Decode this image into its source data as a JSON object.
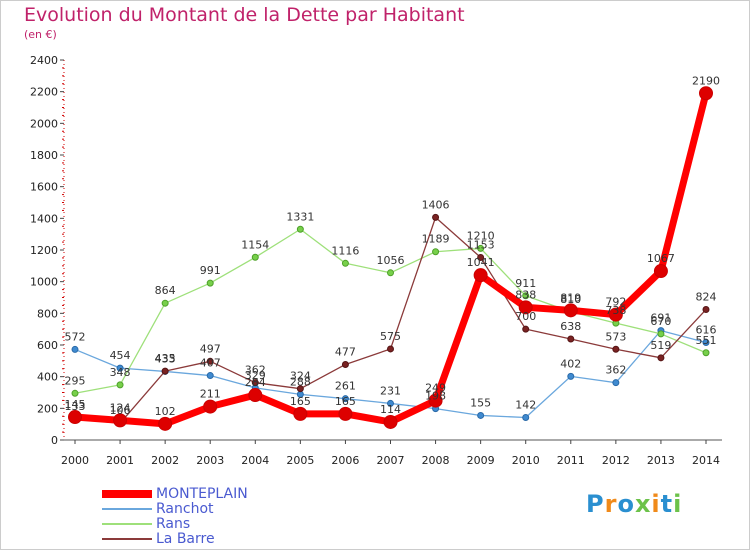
{
  "chart_data": {
    "type": "line",
    "title": "Evolution du Montant de la Dette par Habitant",
    "subtitle": "(en €)",
    "xlabel": "",
    "ylabel": "",
    "ylim": [
      0,
      2400
    ],
    "yticks": [
      0,
      200,
      400,
      600,
      800,
      1000,
      1200,
      1400,
      1600,
      1800,
      2000,
      2200,
      2400
    ],
    "grid": false,
    "legend_position": "bottom-left",
    "categories": [
      "2000",
      "2001",
      "2002",
      "2003",
      "2004",
      "2005",
      "2006",
      "2007",
      "2008",
      "2009",
      "2010",
      "2011",
      "2012",
      "2013",
      "2014"
    ],
    "series": [
      {
        "name": "MONTEPLAIN",
        "color": "#ff0000",
        "values": [
          145,
          124,
          102,
          211,
          284,
          165,
          165,
          114,
          249,
          1041,
          838,
          819,
          792,
          1067,
          2190
        ],
        "labels": [
          "145",
          "124",
          "102",
          "211",
          "284",
          "165",
          "165",
          "114",
          "249",
          "1041",
          "838",
          "819",
          "792",
          "1067",
          "2190"
        ]
      },
      {
        "name": "Ranchot",
        "color": "#4a8fce",
        "values": [
          572,
          454,
          433,
          407,
          329,
          288,
          261,
          231,
          198,
          155,
          142,
          402,
          362,
          691,
          616
        ],
        "labels": [
          "572",
          "454",
          "433",
          "407",
          "329",
          "288",
          "261",
          "231",
          "198",
          "155",
          "142",
          "402",
          "362",
          "691",
          "616"
        ]
      },
      {
        "name": "Rans",
        "color": "#77c94a",
        "values": [
          295,
          348,
          864,
          991,
          1154,
          1331,
          1116,
          1056,
          1189,
          1210,
          911,
          810,
          738,
          670,
          551
        ],
        "labels": [
          "295",
          "348",
          "864",
          "991",
          "1154",
          "1331",
          "1116",
          "1056",
          "1189",
          "1210",
          "911",
          "810",
          "738",
          "670",
          "551"
        ]
      },
      {
        "name": "La Barre",
        "color": "#7a2a2a",
        "values": [
          133,
          106,
          435,
          497,
          362,
          324,
          477,
          575,
          1406,
          1153,
          700,
          638,
          573,
          519,
          824
        ],
        "labels": [
          "133",
          "106",
          "435",
          "497",
          "362",
          "324",
          "477",
          "575",
          "1406",
          "1153",
          "700",
          "638",
          "573",
          "519",
          "824"
        ]
      }
    ]
  },
  "logo": {
    "text": "Proxiti"
  }
}
